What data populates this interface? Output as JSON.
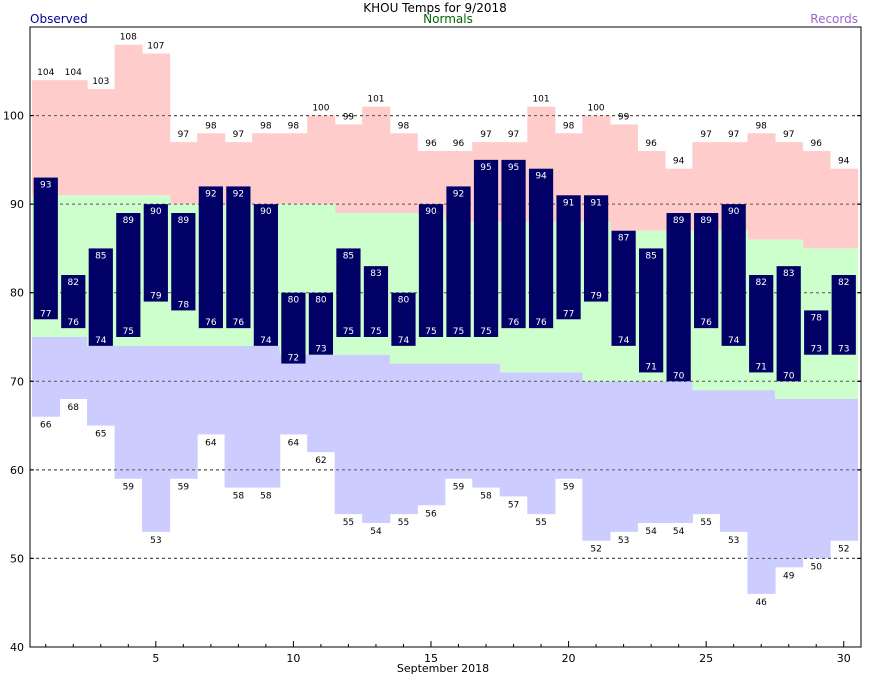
{
  "chart_data": {
    "type": "bar",
    "title": "KHOU Temps for 9/2018",
    "xlabel": "September 2018",
    "ylabel": "",
    "ylim": [
      40,
      110
    ],
    "yticks": [
      40,
      50,
      60,
      70,
      80,
      90,
      100
    ],
    "xticks": [
      5,
      10,
      15,
      20,
      25,
      30
    ],
    "grid": true,
    "legend": {
      "observed": "Observed",
      "normals": "Normals",
      "records": "Records"
    },
    "colors": {
      "observed": "#000066",
      "normals": "#ccffcc",
      "record_high": "#ffcccc",
      "record_low": "#ccccff",
      "observed_legend": "#000099",
      "normals_legend": "#006600",
      "records_legend": "#9966cc"
    },
    "days": [
      1,
      2,
      3,
      4,
      5,
      6,
      7,
      8,
      9,
      10,
      11,
      12,
      13,
      14,
      15,
      16,
      17,
      18,
      19,
      20,
      21,
      22,
      23,
      24,
      25,
      26,
      27,
      28,
      29,
      30
    ],
    "record_high": [
      104,
      104,
      103,
      108,
      107,
      97,
      98,
      97,
      98,
      98,
      100,
      99,
      101,
      98,
      96,
      96,
      97,
      97,
      101,
      98,
      100,
      99,
      96,
      94,
      97,
      97,
      98,
      97,
      96,
      94
    ],
    "record_low": [
      66,
      68,
      65,
      59,
      53,
      59,
      64,
      58,
      58,
      64,
      62,
      55,
      54,
      55,
      56,
      59,
      58,
      57,
      55,
      59,
      52,
      53,
      54,
      54,
      55,
      53,
      46,
      49,
      50,
      52
    ],
    "normal_high": [
      91,
      91,
      91,
      91,
      91,
      90,
      90,
      90,
      90,
      90,
      90,
      89,
      89,
      89,
      89,
      88,
      88,
      88,
      88,
      88,
      88,
      87,
      87,
      87,
      87,
      87,
      86,
      86,
      85,
      85
    ],
    "normal_low": [
      75,
      75,
      74,
      74,
      74,
      74,
      74,
      74,
      74,
      73,
      73,
      73,
      73,
      72,
      72,
      72,
      72,
      71,
      71,
      71,
      70,
      70,
      70,
      70,
      69,
      69,
      69,
      68,
      68,
      68
    ],
    "observed_high": [
      93,
      82,
      85,
      89,
      90,
      89,
      92,
      92,
      90,
      80,
      80,
      85,
      83,
      80,
      90,
      92,
      95,
      95,
      94,
      91,
      91,
      87,
      85,
      89,
      89,
      90,
      82,
      83,
      78,
      82
    ],
    "observed_low": [
      77,
      76,
      74,
      75,
      79,
      78,
      76,
      76,
      74,
      72,
      73,
      75,
      75,
      74,
      75,
      75,
      75,
      76,
      76,
      77,
      79,
      74,
      71,
      70,
      76,
      74,
      71,
      70,
      73,
      73
    ]
  }
}
